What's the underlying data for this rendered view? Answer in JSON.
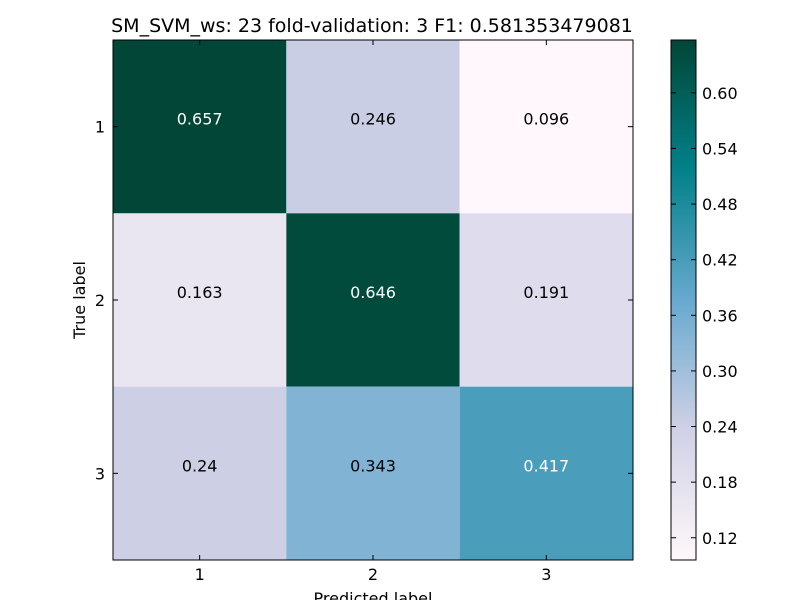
{
  "chart_data": {
    "type": "heatmap",
    "title": "SM_SVM_ws: 23 fold-validation: 3 F1: 0.581353479081",
    "xlabel": "Predicted label",
    "ylabel": "True label",
    "x_categories": [
      "1",
      "2",
      "3"
    ],
    "y_categories": [
      "1",
      "2",
      "3"
    ],
    "values": [
      [
        0.657,
        0.246,
        0.096
      ],
      [
        0.163,
        0.646,
        0.191
      ],
      [
        0.24,
        0.343,
        0.417
      ]
    ],
    "colormap": "PuBuGn",
    "color_range": [
      0.096,
      0.657
    ],
    "colorbar_ticks": [
      "0.12",
      "0.18",
      "0.24",
      "0.30",
      "0.36",
      "0.42",
      "0.48",
      "0.54",
      "0.60"
    ],
    "grid": false
  }
}
